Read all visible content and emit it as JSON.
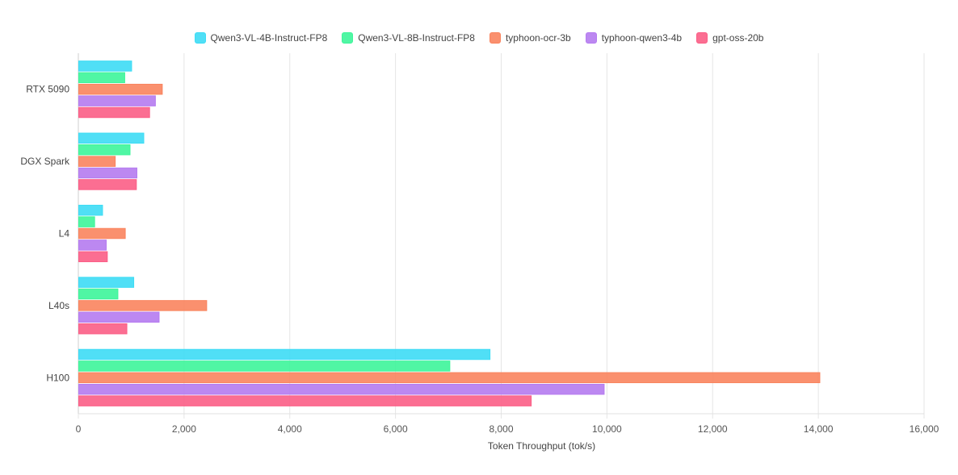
{
  "chart_data": {
    "type": "bar",
    "orientation": "horizontal",
    "title": "",
    "xlabel": "Token Throughput (tok/s)",
    "ylabel": "",
    "xlim": [
      0,
      16000
    ],
    "x_ticks": [
      0,
      2000,
      4000,
      6000,
      8000,
      10000,
      12000,
      14000,
      16000
    ],
    "x_tick_labels": [
      "0",
      "2,000",
      "4,000",
      "6,000",
      "8,000",
      "10,000",
      "12,000",
      "14,000",
      "16,000"
    ],
    "grid": true,
    "legend_position": "top-center",
    "categories": [
      "RTX 5090",
      "DGX Spark",
      "L4",
      "L40s",
      "H100"
    ],
    "series": [
      {
        "name": "Qwen3-VL-4B-Instruct-FP8",
        "color": "#3ddcf5",
        "values": [
          1000,
          1230,
          450,
          1040,
          7780
        ]
      },
      {
        "name": "Qwen3-VL-8B-Instruct-FP8",
        "color": "#3df59a",
        "values": [
          870,
          970,
          300,
          740,
          7020
        ]
      },
      {
        "name": "typhoon-ocr-3b",
        "color": "#f9845e",
        "values": [
          1580,
          690,
          880,
          2420,
          14020
        ]
      },
      {
        "name": "typhoon-qwen3-4b",
        "color": "#b57bf0",
        "values": [
          1450,
          1100,
          520,
          1520,
          9940
        ]
      },
      {
        "name": "gpt-oss-20b",
        "color": "#fb5e86",
        "values": [
          1340,
          1090,
          540,
          910,
          8560
        ]
      }
    ]
  }
}
